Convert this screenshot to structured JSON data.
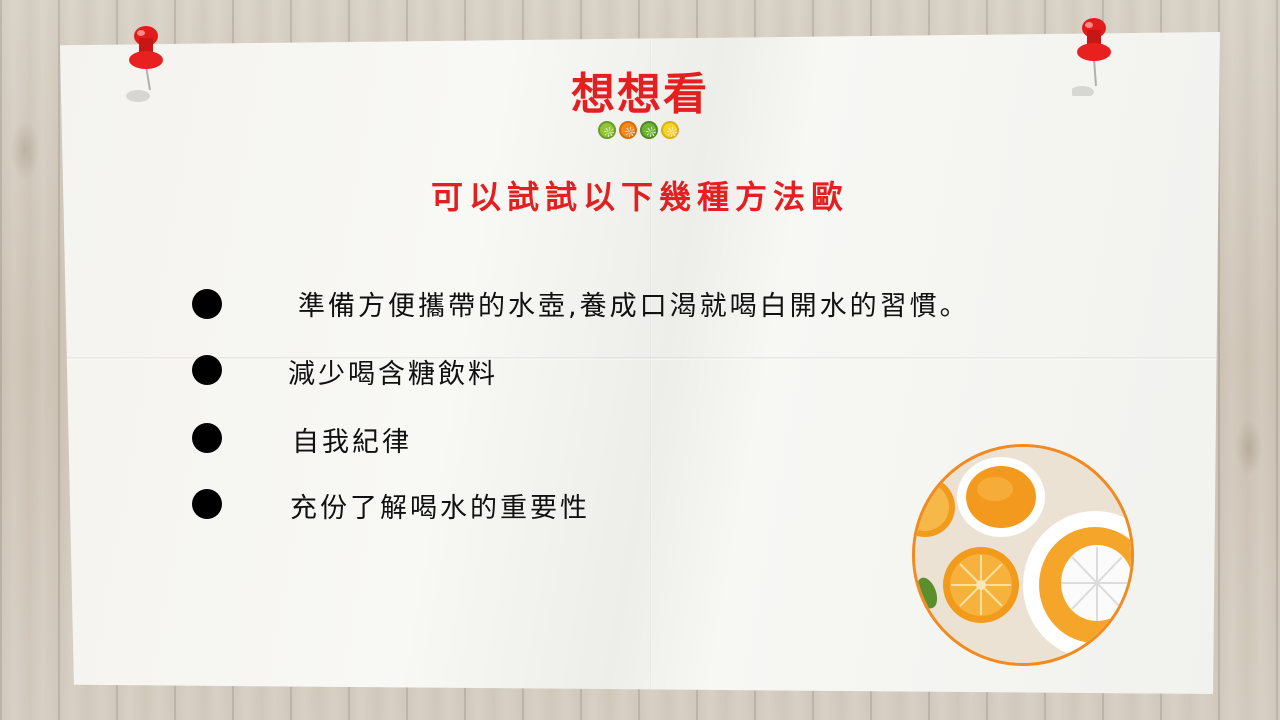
{
  "slide": {
    "title": "想想看",
    "subtitle": "可以試試以下幾種方法歐",
    "items": [
      {
        "text": "準備方便攜帶的水壺,養成口渴就喝白開水的習慣。"
      },
      {
        "text": "減少喝含糖飲料"
      },
      {
        "text": "自我紀律"
      },
      {
        "text": "充份了解喝水的重要性"
      }
    ]
  },
  "icons": {
    "pins": [
      "red-pushpin-icon",
      "red-pushpin-icon"
    ],
    "fruit_dots": [
      "lime-slice-icon",
      "orange-slice-icon",
      "kiwi-slice-icon",
      "lemon-slice-icon"
    ],
    "bullet": "black-circle-bullet-icon"
  },
  "colors": {
    "accent_red": "#e32020",
    "photo_border": "#f18a1f",
    "fruit_dots": [
      "#8fc43b",
      "#f28a1c",
      "#6fb33a",
      "#f6d22a"
    ]
  }
}
